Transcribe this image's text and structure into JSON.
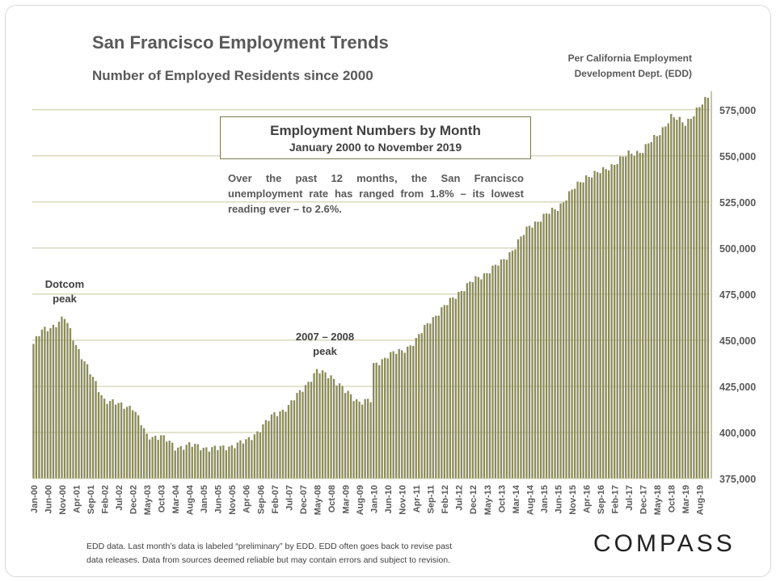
{
  "header": {
    "title": "San Francisco Employment Trends",
    "subtitle": "Number of Employed Residents since 2000",
    "source_line1": "Per California Employment",
    "source_line2": "Development Dept. (EDD)"
  },
  "legend_box": {
    "title": "Employment Numbers by Month",
    "subtitle": "January 2000 to November 2019"
  },
  "note": "Over the past 12 months, the San Francisco unemployment rate has ranged from 1.8% – its lowest reading ever – to 2.6%.",
  "annotations": {
    "dotcom": "Dotcom\npeak",
    "peak2008": "2007 – 2008\npeak"
  },
  "footer": {
    "line1": "EDD data. Last month’s data is labeled “preliminary” by EDD. EDD often goes back to revise past",
    "line2": "data releases. Data from sources deemed reliable but may contain errors and subject to revision."
  },
  "brand": "COMPASS",
  "colors": {
    "bar": "#8b8b5a",
    "grid": "#c8c8a0",
    "text": "#595959"
  },
  "chart_data": {
    "type": "bar",
    "title": "Employment Numbers by Month",
    "subtitle": "January 2000 to November 2019",
    "ylim": [
      375000,
      585000
    ],
    "y_ticks": [
      375000,
      400000,
      425000,
      450000,
      475000,
      500000,
      525000,
      550000,
      575000
    ],
    "y_tick_labels": [
      "375,000",
      "400,000",
      "425,000",
      "450,000",
      "475,000",
      "500,000",
      "525,000",
      "550,000",
      "575,000"
    ],
    "x_start": "Jan-00",
    "x_end": "Nov-19",
    "x_tick_labels": [
      "Jan-00",
      "Jun-00",
      "Nov-00",
      "Apr-01",
      "Sep-01",
      "Feb-02",
      "Jul-02",
      "Dec-02",
      "May-03",
      "Oct-03",
      "Mar-04",
      "Aug-04",
      "Jan-05",
      "Jun-05",
      "Nov-05",
      "Apr-06",
      "Sep-06",
      "Feb-07",
      "Jul-07",
      "Dec-07",
      "May-08",
      "Oct-08",
      "Mar-09",
      "Aug-09",
      "Jan-10",
      "Jun-10",
      "Nov-10",
      "Apr-11",
      "Sep-11",
      "Feb-12",
      "Jul-12",
      "Dec-12",
      "May-13",
      "Oct-13",
      "Mar-14",
      "Aug-14",
      "Jan-15",
      "Jun-15",
      "Nov-15",
      "Apr-16",
      "Sep-16",
      "Feb-17",
      "Jul-17",
      "Dec-17",
      "May-18",
      "Oct-18",
      "Mar-19",
      "Aug-19"
    ],
    "anchors": [
      [
        "Jan-00",
        448000
      ],
      [
        "Apr-00",
        455000
      ],
      [
        "Aug-00",
        458000
      ],
      [
        "Dec-00",
        462000
      ],
      [
        "Apr-01",
        448000
      ],
      [
        "Sep-01",
        432000
      ],
      [
        "Feb-02",
        418000
      ],
      [
        "Jul-02",
        415000
      ],
      [
        "Dec-02",
        414000
      ],
      [
        "May-03",
        398000
      ],
      [
        "Oct-03",
        398000
      ],
      [
        "Mar-04",
        392000
      ],
      [
        "Aug-04",
        393000
      ],
      [
        "Jan-05",
        392000
      ],
      [
        "Jun-05",
        391000
      ],
      [
        "Nov-05",
        393000
      ],
      [
        "Apr-06",
        395000
      ],
      [
        "Sep-06",
        402000
      ],
      [
        "Feb-07",
        410000
      ],
      [
        "Jul-07",
        414000
      ],
      [
        "Dec-07",
        424000
      ],
      [
        "May-08",
        433000
      ],
      [
        "Oct-08",
        431000
      ],
      [
        "Mar-09",
        422000
      ],
      [
        "Aug-09",
        417000
      ],
      [
        "Dec-09",
        417000
      ],
      [
        "Jan-10",
        436000
      ],
      [
        "Jun-10",
        442000
      ],
      [
        "Nov-10",
        444000
      ],
      [
        "Apr-11",
        450000
      ],
      [
        "Sep-11",
        461000
      ],
      [
        "Feb-12",
        468000
      ],
      [
        "Jul-12",
        476000
      ],
      [
        "Dec-12",
        482000
      ],
      [
        "May-13",
        487000
      ],
      [
        "Oct-13",
        492000
      ],
      [
        "Mar-14",
        501000
      ],
      [
        "Aug-14",
        512000
      ],
      [
        "Jan-15",
        517000
      ],
      [
        "Jun-15",
        522000
      ],
      [
        "Nov-15",
        531000
      ],
      [
        "Apr-16",
        539000
      ],
      [
        "Sep-16",
        541000
      ],
      [
        "Feb-17",
        546000
      ],
      [
        "Jul-17",
        551000
      ],
      [
        "Dec-17",
        553000
      ],
      [
        "May-18",
        561000
      ],
      [
        "Oct-18",
        571000
      ],
      [
        "Mar-19",
        568000
      ],
      [
        "Aug-19",
        576000
      ],
      [
        "Nov-19",
        582000
      ]
    ]
  }
}
